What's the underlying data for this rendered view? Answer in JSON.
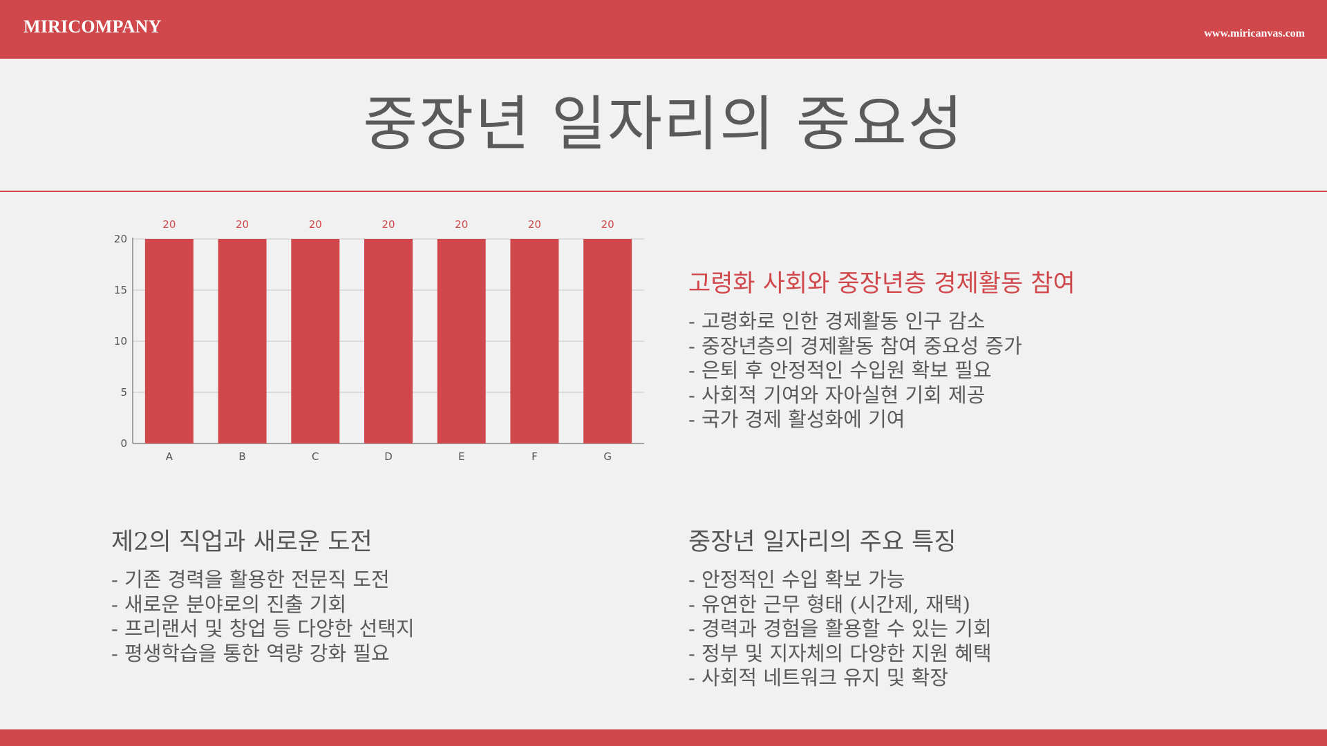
{
  "header": {
    "brand": "MIRICOMPANY",
    "website": "www.miricanvas.com"
  },
  "title": "중장년 일자리의 중요성",
  "colors": {
    "accent": "#d0484b",
    "background": "#f1f1f1",
    "text": "#555555"
  },
  "chart_data": {
    "type": "bar",
    "categories": [
      "A",
      "B",
      "C",
      "D",
      "E",
      "F",
      "G"
    ],
    "values": [
      20,
      20,
      20,
      20,
      20,
      20,
      20
    ],
    "data_labels": [
      "20",
      "20",
      "20",
      "20",
      "20",
      "20",
      "20"
    ],
    "yticks": [
      0,
      5,
      10,
      15,
      20
    ],
    "ylim": [
      0,
      20
    ],
    "grid": true,
    "bar_color": "#d0484b",
    "title": "",
    "xlabel": "",
    "ylabel": ""
  },
  "sections": [
    {
      "heading": "고령화 사회와 중장년층 경제활동 참여",
      "items": [
        "- 고령화로 인한 경제활동 인구 감소",
        "- 중장년층의 경제활동 참여 중요성 증가",
        "- 은퇴 후 안정적인 수입원 확보 필요",
        "- 사회적 기여와 자아실현 기회 제공",
        "- 국가 경제 활성화에 기여"
      ]
    },
    {
      "heading": "제2의 직업과 새로운 도전",
      "items": [
        "- 기존 경력을 활용한 전문직 도전",
        "- 새로운 분야로의 진출 기회",
        "- 프리랜서 및 창업 등 다양한 선택지",
        "- 평생학습을 통한 역량 강화 필요"
      ]
    },
    {
      "heading": "중장년 일자리의 주요 특징",
      "items": [
        "- 안정적인 수입 확보 가능",
        "- 유연한 근무 형태 (시간제, 재택)",
        "- 경력과 경험을 활용할 수 있는 기회",
        "- 정부 및 지자체의 다양한 지원 혜택",
        "- 사회적 네트워크 유지 및 확장"
      ]
    }
  ]
}
